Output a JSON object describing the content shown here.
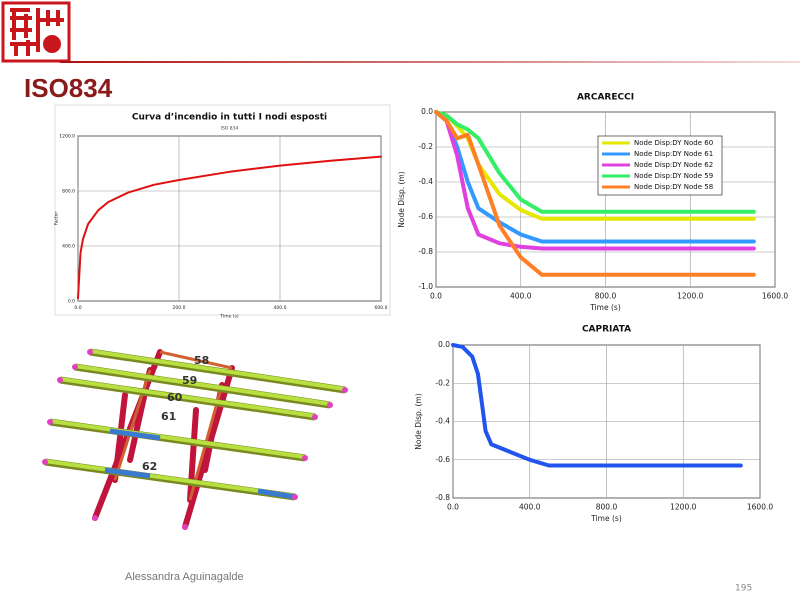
{
  "title": "ISO834",
  "author": "Alessandra Aguinagalde",
  "page_number": 195,
  "model_labels": [
    58,
    59,
    60,
    61,
    62
  ],
  "chart_data": [
    {
      "type": "line",
      "title": "Curva d’incendio in tutti I nodi esposti",
      "subtitle": "ISO 834",
      "x_label": "Time (s)",
      "y_label": "Factor",
      "x": [
        0,
        5,
        10,
        20,
        40,
        60,
        100,
        150,
        200,
        300,
        400,
        500,
        600
      ],
      "values": [
        20,
        350,
        450,
        560,
        660,
        720,
        790,
        845,
        880,
        940,
        985,
        1020,
        1050
      ],
      "color": "#e01010",
      "xlim": [
        0,
        600
      ],
      "xticks": [
        {
          "value": 0,
          "label": "0.0"
        },
        {
          "value": 200,
          "label": "200.0"
        },
        {
          "value": 400,
          "label": "400.0"
        },
        {
          "value": 600,
          "label": "600.0"
        }
      ],
      "ylim": [
        0,
        1200
      ],
      "yticks": [
        {
          "value": 0,
          "label": "0.0"
        },
        {
          "value": 400,
          "label": "400.0"
        },
        {
          "value": 800,
          "label": "800.0"
        },
        {
          "value": 1200,
          "label": "1200.0"
        }
      ],
      "grid": true
    },
    {
      "type": "line",
      "title": "ARCARECCI",
      "x_label": "Time (s)",
      "y_label": "Node Disp. (m)",
      "x": [
        0,
        50,
        100,
        150,
        200,
        300,
        400,
        500,
        1500
      ],
      "series": [
        {
          "name": "Node Disp:DY  Node 60",
          "color": "#e6e600",
          "values": [
            0,
            -0.02,
            -0.08,
            -0.15,
            -0.3,
            -0.47,
            -0.56,
            -0.61,
            -0.61
          ]
        },
        {
          "name": "Node Disp:DY  Node 61",
          "color": "#3399ff",
          "values": [
            0,
            -0.05,
            -0.2,
            -0.4,
            -0.55,
            -0.63,
            -0.7,
            -0.74,
            -0.74
          ]
        },
        {
          "name": "Node Disp:DY  Node 62",
          "color": "#e040e0",
          "values": [
            0,
            -0.05,
            -0.25,
            -0.55,
            -0.7,
            -0.75,
            -0.77,
            -0.78,
            -0.78
          ]
        },
        {
          "name": "Node Disp:DY  Node 59",
          "color": "#33ee66",
          "values": [
            0,
            -0.02,
            -0.07,
            -0.1,
            -0.15,
            -0.35,
            -0.5,
            -0.57,
            -0.57
          ]
        },
        {
          "name": "Node Disp:DY  Node 58",
          "color": "#ff7f27",
          "values": [
            0,
            -0.05,
            -0.15,
            -0.13,
            -0.3,
            -0.65,
            -0.83,
            -0.93,
            -0.93
          ]
        }
      ],
      "xlim": [
        0,
        1600
      ],
      "xticks": [
        {
          "value": 0,
          "label": "0.0"
        },
        {
          "value": 400,
          "label": "400.0"
        },
        {
          "value": 800,
          "label": "800.0"
        },
        {
          "value": 1200,
          "label": "1200.0"
        },
        {
          "value": 1600,
          "label": "1600.0"
        }
      ],
      "ylim": [
        -1.0,
        0.0
      ],
      "yticks": [
        {
          "value": 0,
          "label": "0.0"
        },
        -0.2,
        -0.4,
        -0.6,
        -0.8,
        {
          "value": -1.0,
          "label": "-1.0"
        }
      ],
      "grid": true,
      "legend": "upper right"
    },
    {
      "type": "line",
      "title": "CAPRIATA",
      "x_label": "Time (s)",
      "y_label": "Node Disp. (m)",
      "x": [
        0,
        50,
        100,
        130,
        150,
        170,
        200,
        300,
        400,
        500,
        1500
      ],
      "values": [
        0,
        -0.01,
        -0.06,
        -0.15,
        -0.3,
        -0.45,
        -0.52,
        -0.56,
        -0.6,
        -0.63,
        -0.63
      ],
      "color": "#2255ee",
      "xlim": [
        0,
        1600
      ],
      "xticks": [
        {
          "value": 0,
          "label": "0.0"
        },
        {
          "value": 400,
          "label": "400.0"
        },
        {
          "value": 800,
          "label": "800.0"
        },
        {
          "value": 1200,
          "label": "1200.0"
        },
        {
          "value": 1600,
          "label": "1600.0"
        }
      ],
      "ylim": [
        -0.8,
        0.0
      ],
      "yticks": [
        {
          "value": 0,
          "label": "0.0"
        },
        -0.2,
        -0.4,
        -0.6,
        -0.8
      ],
      "grid": true
    }
  ]
}
